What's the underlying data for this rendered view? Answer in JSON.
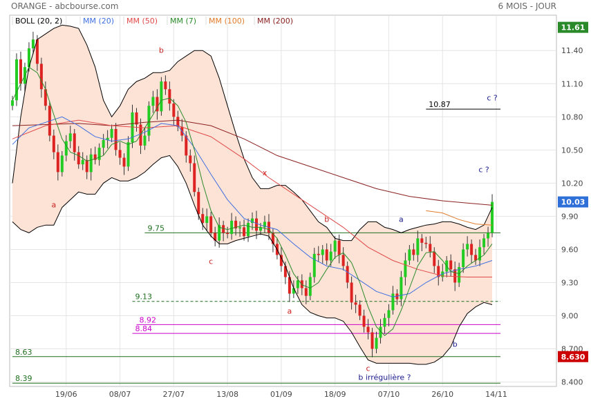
{
  "header": {
    "title": "ORANGE - abcbourse.com",
    "period": "6 MOIS - JOUR"
  },
  "legend": [
    {
      "label": "BOLL (20, 2)",
      "color": "#000000"
    },
    {
      "label": "MM (20)",
      "color": "#3f6fe0"
    },
    {
      "label": "MM (50)",
      "color": "#e04848"
    },
    {
      "label": "MM (7)",
      "color": "#2a8a2a"
    },
    {
      "label": "MM (100)",
      "color": "#e07a28"
    },
    {
      "label": "MM (200)",
      "color": "#8a2020"
    }
  ],
  "colors": {
    "up": "#22cc22",
    "down": "#dd2222",
    "boll_band": "#000000",
    "boll_fill": "#fde3d6",
    "mm7": "#2a8a2a",
    "mm20": "#3f6fe0",
    "mm50": "#e04848",
    "mm100": "#e07a28",
    "mm200": "#8a2020",
    "axis_badge": "#2a8a2a",
    "last_badge": "#2e6fd8",
    "low_badge": "#cc0000"
  },
  "chart_data": {
    "type": "candlestick",
    "ylim": [
      8.36,
      11.72
    ],
    "yticks": [
      8.4,
      8.7,
      9.0,
      9.3,
      9.6,
      9.9,
      10.2,
      10.5,
      10.8,
      11.1,
      11.4
    ],
    "ytick_labels": [
      "8.400",
      "8.700",
      "9.00",
      "9.30",
      "9.60",
      "9.90",
      "10.20",
      "10.50",
      "10.80",
      "11.10",
      "11.40"
    ],
    "x_range": [
      0,
      118
    ],
    "xticks": [
      {
        "index": 13,
        "label": "19/06"
      },
      {
        "index": 26,
        "label": "08/07"
      },
      {
        "index": 39,
        "label": "27/07"
      },
      {
        "index": 52,
        "label": "13/08"
      },
      {
        "index": 65,
        "label": "01/09"
      },
      {
        "index": 78,
        "label": "18/09"
      },
      {
        "index": 91,
        "label": "07/10"
      },
      {
        "index": 104,
        "label": "26/10"
      },
      {
        "index": 117,
        "label": "14/11"
      }
    ],
    "price_badges": [
      {
        "value": 11.61,
        "label": "11.61",
        "kind": "high"
      },
      {
        "value": 10.03,
        "label": "10.03",
        "kind": "last"
      },
      {
        "value": 8.63,
        "label": "8.630",
        "kind": "low"
      }
    ],
    "candles_close": [
      10.95,
      11.32,
      11.1,
      11.25,
      11.42,
      11.5,
      11.28,
      11.05,
      10.9,
      10.63,
      10.48,
      10.3,
      10.45,
      10.58,
      10.65,
      10.48,
      10.37,
      10.41,
      10.3,
      10.46,
      10.41,
      10.52,
      10.59,
      10.61,
      10.69,
      10.5,
      10.43,
      10.35,
      10.57,
      10.84,
      10.73,
      10.54,
      10.63,
      10.9,
      10.98,
      10.85,
      11.12,
      11.05,
      10.92,
      10.8,
      10.71,
      10.63,
      10.45,
      10.38,
      10.12,
      9.92,
      9.84,
      9.9,
      9.75,
      9.68,
      9.82,
      9.75,
      9.74,
      9.86,
      9.79,
      9.8,
      9.72,
      9.84,
      9.88,
      9.77,
      9.8,
      9.85,
      9.75,
      9.65,
      9.55,
      9.45,
      9.35,
      9.2,
      9.25,
      9.32,
      9.25,
      9.18,
      9.35,
      9.56,
      9.55,
      9.6,
      9.5,
      9.58,
      9.68,
      9.55,
      9.45,
      9.3,
      9.12,
      9.1,
      9.0,
      8.9,
      8.85,
      8.7,
      8.8,
      8.9,
      8.98,
      9.05,
      9.2,
      9.15,
      9.35,
      9.5,
      9.6,
      9.55,
      9.7,
      9.66,
      9.65,
      9.58,
      9.45,
      9.35,
      9.4,
      9.5,
      9.42,
      9.3,
      9.44,
      9.6,
      9.65,
      9.55,
      9.5,
      9.62,
      9.7,
      9.75,
      10.03
    ],
    "lines": {
      "boll_upper": [
        [
          0,
          10.2
        ],
        [
          2,
          10.8
        ],
        [
          4,
          11.25
        ],
        [
          6,
          11.5
        ],
        [
          8,
          11.55
        ],
        [
          10,
          11.6
        ],
        [
          12,
          11.63
        ],
        [
          14,
          11.62
        ],
        [
          16,
          11.6
        ],
        [
          18,
          11.45
        ],
        [
          20,
          11.25
        ],
        [
          22,
          10.95
        ],
        [
          24,
          10.8
        ],
        [
          26,
          10.9
        ],
        [
          28,
          11.05
        ],
        [
          30,
          11.12
        ],
        [
          32,
          11.15
        ],
        [
          34,
          11.2
        ],
        [
          36,
          11.2
        ],
        [
          38,
          11.22
        ],
        [
          40,
          11.3
        ],
        [
          42,
          11.35
        ],
        [
          44,
          11.4
        ],
        [
          46,
          11.4
        ],
        [
          48,
          11.35
        ],
        [
          50,
          11.15
        ],
        [
          52,
          10.9
        ],
        [
          54,
          10.65
        ],
        [
          56,
          10.42
        ],
        [
          58,
          10.25
        ],
        [
          60,
          10.15
        ],
        [
          62,
          10.15
        ],
        [
          64,
          10.18
        ],
        [
          66,
          10.18
        ],
        [
          68,
          10.12
        ],
        [
          70,
          10.05
        ],
        [
          72,
          9.95
        ],
        [
          74,
          9.85
        ],
        [
          76,
          9.8
        ],
        [
          78,
          9.7
        ],
        [
          80,
          9.68
        ],
        [
          82,
          9.68
        ],
        [
          84,
          9.78
        ],
        [
          86,
          9.85
        ],
        [
          88,
          9.85
        ],
        [
          90,
          9.8
        ],
        [
          92,
          9.78
        ],
        [
          94,
          9.75
        ],
        [
          96,
          9.78
        ],
        [
          98,
          9.8
        ],
        [
          100,
          9.82
        ],
        [
          102,
          9.83
        ],
        [
          104,
          9.85
        ],
        [
          106,
          9.85
        ],
        [
          108,
          9.83
        ],
        [
          110,
          9.8
        ],
        [
          112,
          9.78
        ],
        [
          114,
          9.82
        ],
        [
          116,
          9.98
        ]
      ],
      "boll_lower": [
        [
          0,
          9.85
        ],
        [
          2,
          9.78
        ],
        [
          4,
          9.75
        ],
        [
          6,
          9.8
        ],
        [
          8,
          9.82
        ],
        [
          10,
          9.82
        ],
        [
          12,
          9.98
        ],
        [
          14,
          10.05
        ],
        [
          16,
          10.12
        ],
        [
          18,
          10.1
        ],
        [
          20,
          10.1
        ],
        [
          22,
          10.2
        ],
        [
          24,
          10.25
        ],
        [
          26,
          10.22
        ],
        [
          28,
          10.22
        ],
        [
          30,
          10.25
        ],
        [
          32,
          10.3
        ],
        [
          34,
          10.37
        ],
        [
          36,
          10.43
        ],
        [
          38,
          10.45
        ],
        [
          40,
          10.35
        ],
        [
          42,
          10.2
        ],
        [
          44,
          10.0
        ],
        [
          46,
          9.82
        ],
        [
          48,
          9.72
        ],
        [
          50,
          9.65
        ],
        [
          52,
          9.65
        ],
        [
          54,
          9.68
        ],
        [
          56,
          9.7
        ],
        [
          58,
          9.72
        ],
        [
          60,
          9.74
        ],
        [
          62,
          9.72
        ],
        [
          64,
          9.6
        ],
        [
          66,
          9.45
        ],
        [
          68,
          9.25
        ],
        [
          70,
          9.1
        ],
        [
          72,
          9.03
        ],
        [
          74,
          9.0
        ],
        [
          76,
          8.98
        ],
        [
          78,
          8.98
        ],
        [
          80,
          8.95
        ],
        [
          82,
          8.85
        ],
        [
          84,
          8.72
        ],
        [
          86,
          8.6
        ],
        [
          88,
          8.57
        ],
        [
          90,
          8.57
        ],
        [
          92,
          8.57
        ],
        [
          94,
          8.57
        ],
        [
          96,
          8.57
        ],
        [
          98,
          8.56
        ],
        [
          100,
          8.56
        ],
        [
          102,
          8.58
        ],
        [
          104,
          8.63
        ],
        [
          106,
          8.72
        ],
        [
          108,
          8.9
        ],
        [
          110,
          9.02
        ],
        [
          112,
          9.08
        ],
        [
          114,
          9.12
        ],
        [
          116,
          9.1
        ]
      ],
      "mm7": [
        [
          0,
          10.95
        ],
        [
          2,
          11.1
        ],
        [
          4,
          11.25
        ],
        [
          6,
          11.2
        ],
        [
          8,
          11.05
        ],
        [
          10,
          10.82
        ],
        [
          12,
          10.6
        ],
        [
          14,
          10.48
        ],
        [
          16,
          10.45
        ],
        [
          18,
          10.4
        ],
        [
          20,
          10.42
        ],
        [
          22,
          10.45
        ],
        [
          24,
          10.55
        ],
        [
          26,
          10.58
        ],
        [
          28,
          10.55
        ],
        [
          30,
          10.58
        ],
        [
          32,
          10.7
        ],
        [
          34,
          10.82
        ],
        [
          36,
          10.95
        ],
        [
          38,
          10.97
        ],
        [
          40,
          10.9
        ],
        [
          42,
          10.75
        ],
        [
          44,
          10.5
        ],
        [
          46,
          10.2
        ],
        [
          48,
          9.95
        ],
        [
          50,
          9.8
        ],
        [
          52,
          9.78
        ],
        [
          54,
          9.8
        ],
        [
          56,
          9.82
        ],
        [
          58,
          9.8
        ],
        [
          60,
          9.8
        ],
        [
          62,
          9.78
        ],
        [
          64,
          9.7
        ],
        [
          66,
          9.55
        ],
        [
          68,
          9.38
        ],
        [
          70,
          9.28
        ],
        [
          72,
          9.25
        ],
        [
          74,
          9.3
        ],
        [
          76,
          9.42
        ],
        [
          78,
          9.53
        ],
        [
          80,
          9.57
        ],
        [
          82,
          9.48
        ],
        [
          84,
          9.3
        ],
        [
          86,
          9.08
        ],
        [
          88,
          8.9
        ],
        [
          90,
          8.82
        ],
        [
          92,
          8.88
        ],
        [
          94,
          9.05
        ],
        [
          96,
          9.25
        ],
        [
          98,
          9.45
        ],
        [
          100,
          9.57
        ],
        [
          102,
          9.58
        ],
        [
          104,
          9.5
        ],
        [
          106,
          9.4
        ],
        [
          108,
          9.38
        ],
        [
          110,
          9.45
        ],
        [
          112,
          9.5
        ],
        [
          114,
          9.55
        ],
        [
          116,
          9.65
        ]
      ],
      "mm20": [
        [
          0,
          10.55
        ],
        [
          4,
          10.7
        ],
        [
          8,
          10.75
        ],
        [
          12,
          10.8
        ],
        [
          16,
          10.72
        ],
        [
          20,
          10.62
        ],
        [
          24,
          10.58
        ],
        [
          28,
          10.6
        ],
        [
          32,
          10.66
        ],
        [
          36,
          10.74
        ],
        [
          40,
          10.72
        ],
        [
          44,
          10.52
        ],
        [
          48,
          10.28
        ],
        [
          52,
          10.05
        ],
        [
          56,
          9.88
        ],
        [
          60,
          9.82
        ],
        [
          64,
          9.78
        ],
        [
          68,
          9.65
        ],
        [
          72,
          9.53
        ],
        [
          76,
          9.45
        ],
        [
          80,
          9.42
        ],
        [
          84,
          9.32
        ],
        [
          88,
          9.22
        ],
        [
          92,
          9.17
        ],
        [
          96,
          9.2
        ],
        [
          100,
          9.3
        ],
        [
          104,
          9.38
        ],
        [
          108,
          9.42
        ],
        [
          112,
          9.45
        ],
        [
          116,
          9.5
        ]
      ],
      "mm50": [
        [
          0,
          10.6
        ],
        [
          8,
          10.72
        ],
        [
          16,
          10.77
        ],
        [
          24,
          10.72
        ],
        [
          32,
          10.7
        ],
        [
          40,
          10.72
        ],
        [
          48,
          10.62
        ],
        [
          56,
          10.42
        ],
        [
          62,
          10.25
        ],
        [
          68,
          10.1
        ],
        [
          74,
          9.95
        ],
        [
          80,
          9.8
        ],
        [
          86,
          9.62
        ],
        [
          92,
          9.5
        ],
        [
          98,
          9.42
        ],
        [
          104,
          9.36
        ],
        [
          110,
          9.35
        ],
        [
          116,
          9.35
        ]
      ],
      "mm100": [
        [
          100,
          9.95
        ],
        [
          104,
          9.93
        ],
        [
          108,
          9.87
        ],
        [
          112,
          9.83
        ],
        [
          116,
          9.82
        ]
      ],
      "mm200": [
        [
          0,
          10.72
        ],
        [
          8,
          10.73
        ],
        [
          16,
          10.74
        ],
        [
          24,
          10.72
        ],
        [
          32,
          10.75
        ],
        [
          40,
          10.77
        ],
        [
          48,
          10.72
        ],
        [
          56,
          10.6
        ],
        [
          64,
          10.45
        ],
        [
          72,
          10.35
        ],
        [
          80,
          10.25
        ],
        [
          88,
          10.15
        ],
        [
          96,
          10.08
        ],
        [
          104,
          10.04
        ],
        [
          110,
          10.02
        ],
        [
          116,
          10.0
        ]
      ]
    },
    "hlines": [
      {
        "value": 10.87,
        "from": 100,
        "to": 118,
        "label": "10.87",
        "color": "#000000",
        "dash": false
      },
      {
        "value": 9.75,
        "from": 32,
        "to": 118,
        "label": "9.75",
        "color": "#1f6e1f",
        "dash": false
      },
      {
        "value": 9.13,
        "from": 29,
        "to": 118,
        "label": "9.13",
        "color": "#1f6e1f",
        "dash": true
      },
      {
        "value": 8.92,
        "from": 30,
        "to": 118,
        "label": "8.92",
        "color": "#cc00cc",
        "dash": false
      },
      {
        "value": 8.84,
        "from": 29,
        "to": 118,
        "label": "8.84",
        "color": "#cc00cc",
        "dash": false
      },
      {
        "value": 8.63,
        "from": 0,
        "to": 118,
        "label": "8.63",
        "color": "#1f6e1f",
        "dash": false
      },
      {
        "value": 8.39,
        "from": 0,
        "to": 118,
        "label": "8.39",
        "color": "#1f6e1f",
        "dash": false
      }
    ],
    "annotations": [
      {
        "text": "b",
        "x": 36,
        "y": 11.38,
        "color": "#cc2222"
      },
      {
        "text": "a",
        "x": 10,
        "y": 9.98,
        "color": "#cc2222"
      },
      {
        "text": "c",
        "x": 48,
        "y": 9.47,
        "color": "#cc2222"
      },
      {
        "text": "x",
        "x": 61,
        "y": 10.27,
        "color": "#cc2222"
      },
      {
        "text": "b",
        "x": 76,
        "y": 9.85,
        "color": "#cc2222"
      },
      {
        "text": "a",
        "x": 67,
        "y": 9.02,
        "color": "#cc2222"
      },
      {
        "text": "c",
        "x": 86,
        "y": 8.5,
        "color": "#cc2222"
      },
      {
        "text": "a",
        "x": 94,
        "y": 9.85,
        "color": "#1a1a8c"
      },
      {
        "text": "b",
        "x": 107,
        "y": 8.72,
        "color": "#1a1a8c"
      },
      {
        "text": "c ?",
        "x": 116,
        "y": 10.95,
        "color": "#1a1a8c"
      },
      {
        "text": "c ?",
        "x": 114,
        "y": 10.3,
        "color": "#1a1a8c"
      },
      {
        "text": "b irrégulière ?",
        "x": 90,
        "y": 8.42,
        "color": "#1a1a8c"
      }
    ]
  }
}
